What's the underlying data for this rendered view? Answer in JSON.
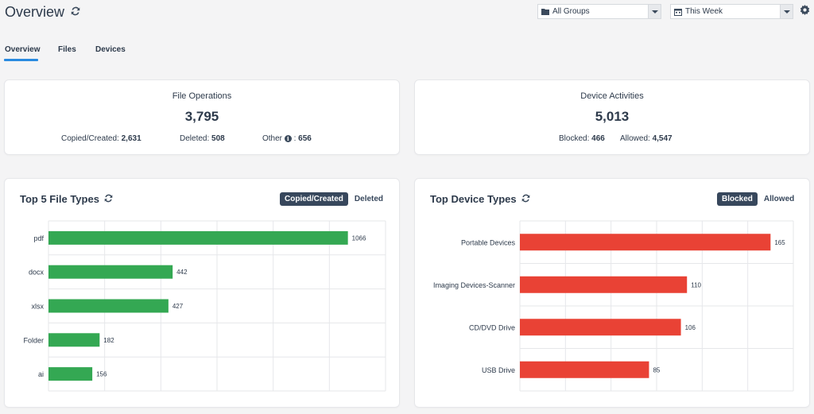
{
  "header": {
    "title": "Overview",
    "refresh_icon": "refresh-icon",
    "group_select": {
      "icon": "folder-icon",
      "value": "All Groups"
    },
    "period_select": {
      "icon": "calendar-icon",
      "value": "This Week"
    },
    "settings_icon": "gear-icon"
  },
  "tabs": [
    {
      "label": "Overview",
      "active": true
    },
    {
      "label": "Files",
      "active": false
    },
    {
      "label": "Devices",
      "active": false
    }
  ],
  "file_operations": {
    "title": "File Operations",
    "total": "3,795",
    "copied_label": "Copied/Created:",
    "copied_value": "2,631",
    "deleted_label": "Deleted:",
    "deleted_value": "508",
    "other_label": "Other",
    "other_sep": ":",
    "other_value": "656"
  },
  "device_activities": {
    "title": "Device Activities",
    "total": "5,013",
    "blocked_label": "Blocked:",
    "blocked_value": "466",
    "allowed_label": "Allowed:",
    "allowed_value": "4,547"
  },
  "file_types_panel": {
    "title": "Top 5 File Types",
    "toggle_active": "Copied/Created",
    "toggle_inactive": "Deleted"
  },
  "device_types_panel": {
    "title": "Top Device Types",
    "toggle_active": "Blocked",
    "toggle_inactive": "Allowed"
  },
  "colors": {
    "green_bar": "#34a853",
    "red_bar": "#e94235",
    "accent": "#2a8be0",
    "dark": "#37475c"
  },
  "chart_data": [
    {
      "type": "bar",
      "orientation": "horizontal",
      "title": "Top 5 File Types",
      "categories": [
        "pdf",
        "docx",
        "xlsx",
        "Folder",
        "ai"
      ],
      "values": [
        1066,
        442,
        427,
        182,
        156
      ],
      "xlim": [
        0,
        1200
      ],
      "grid": true,
      "legend": "none"
    },
    {
      "type": "bar",
      "orientation": "horizontal",
      "title": "Top Device Types",
      "categories": [
        "Portable Devices",
        "Imaging Devices-Scanner",
        "CD/DVD Drive",
        "USB Drive"
      ],
      "values": [
        165,
        110,
        106,
        85
      ],
      "xlim": [
        0,
        180
      ],
      "grid": true,
      "legend": "none"
    }
  ]
}
